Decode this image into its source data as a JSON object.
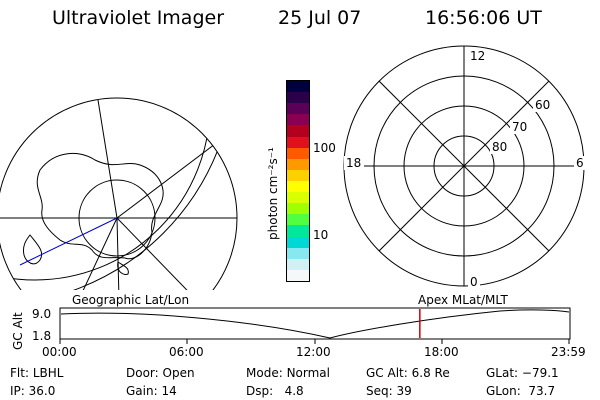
{
  "header": {
    "title": "Ultraviolet Imager",
    "date": "25 Jul 07",
    "time": "16:56:06 UT"
  },
  "map_left": {
    "caption": "Geographic Lat/Lon"
  },
  "map_right": {
    "caption": "Apex  MLat/MLT",
    "mlt_labels": [
      "12",
      "18",
      "6",
      "0"
    ],
    "lat_labels": [
      "60",
      "70",
      "80"
    ]
  },
  "colorbar": {
    "unit": "photon cm⁻²s⁻¹",
    "ticks": [
      "100",
      "10"
    ],
    "colors": [
      "#000040",
      "#2a004a",
      "#5a0057",
      "#8a0050",
      "#b3001f",
      "#e0101c",
      "#ff5a00",
      "#ff9900",
      "#ffd000",
      "#ffff00",
      "#d9ff00",
      "#a0ff00",
      "#50ff40",
      "#00e89a",
      "#00d8d8",
      "#88e8f0",
      "#d0f0f4",
      "#f4f8f8"
    ]
  },
  "timeline": {
    "ylabel": "GC Alt",
    "yticks": [
      "9.0",
      "1.8"
    ],
    "xticks": [
      "00:00",
      "06:00",
      "12:00",
      "18:00",
      "23:59"
    ],
    "current_time": "16:56",
    "marker_color": "#cc0000"
  },
  "info": {
    "flt_label": "Flt:",
    "flt_value": "LBHL",
    "ip_label": "IP:",
    "ip_value": "36.0",
    "door_label": "Door:",
    "door_value": "Open",
    "gain_label": "Gain:",
    "gain_value": "14",
    "mode_label": "Mode:",
    "mode_value": "Normal",
    "dsp_label": "Dsp:",
    "dsp_value": "4.8",
    "gcalt_label": "GC Alt:",
    "gcalt_value": "6.8 Re",
    "seq_label": "Seq:",
    "seq_value": "39",
    "glat_label": "GLat:",
    "glat_value": "−79.1",
    "glon_label": "GLon:",
    "glon_value": "73.7"
  }
}
